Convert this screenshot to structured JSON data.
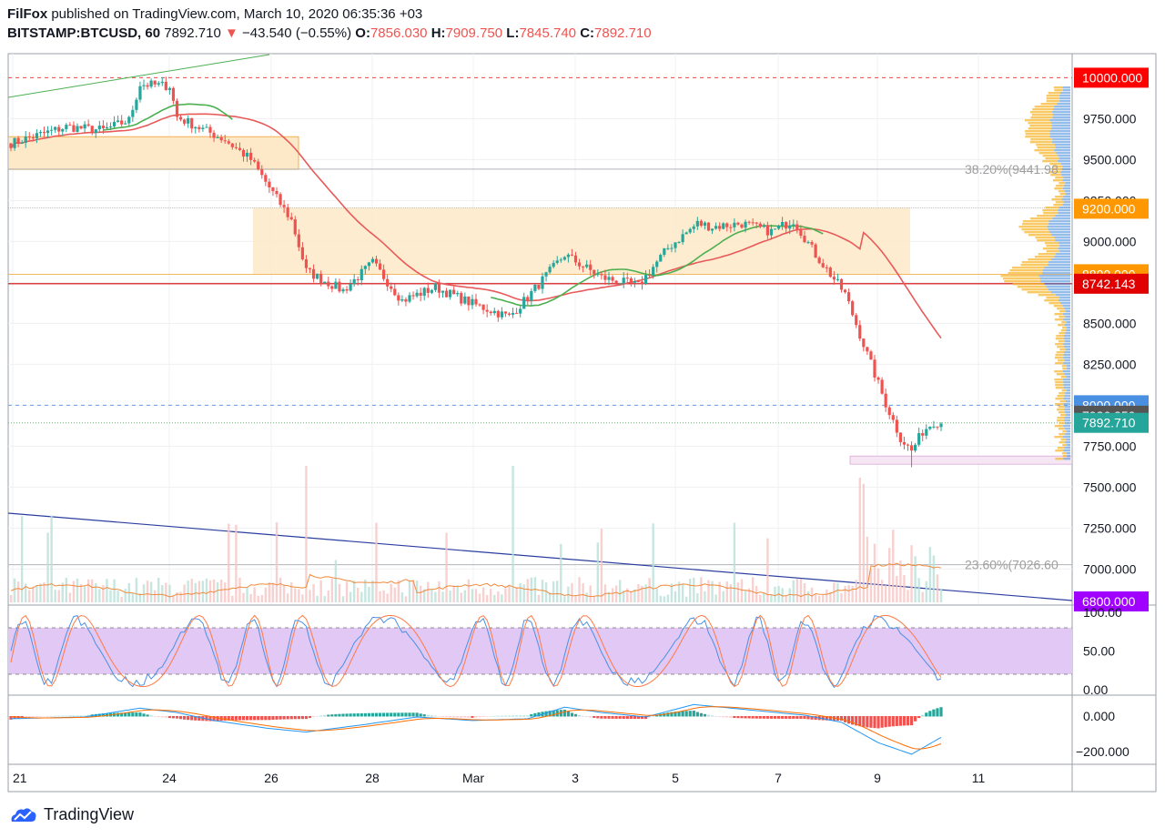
{
  "header": {
    "author": "FilFox",
    "published_text": "published on TradingView.com, March 10, 2020 06:35:36 +03",
    "symbol": "BITSTAMP:BTCUSD, 60",
    "last": "7892.710",
    "change": "−43.540 (−0.55%)",
    "open_label": "O:",
    "open": "7856.030",
    "high_label": "H:",
    "high": "7909.750",
    "low_label": "L:",
    "low": "7845.740",
    "close_label": "C:",
    "close": "7892.710"
  },
  "footer": {
    "brand": "TradingView"
  },
  "colors": {
    "up": "#26a69a",
    "down": "#ef5350",
    "ma_red": "#e85a5a",
    "ma_green": "#4caf50",
    "zone": "#fde9c7",
    "zone_line": "#f0a030",
    "rsi_band": "#e1c8f5",
    "blue_line": "#2a3ea0"
  },
  "chart_data": [
    {
      "type": "candlestick",
      "series_name": "BITSTAMP:BTCUSD, 60",
      "x_ticks": [
        "21",
        "24",
        "26",
        "28",
        "Mar",
        "3",
        "5",
        "7",
        "9",
        "11"
      ],
      "y_ticks": [
        "9750.000",
        "9500.000",
        "9250.000",
        "9000.000",
        "8500.000",
        "8250.000",
        "7750.000",
        "7500.000",
        "7250.000",
        "7000.000"
      ],
      "ylim": [
        6800,
        10150
      ],
      "price_labels": [
        {
          "text": "10000.000",
          "value": 10000,
          "color": "#ff0000"
        },
        {
          "text": "9200.000",
          "value": 9200,
          "color": "#ff9800"
        },
        {
          "text": "8800.000",
          "value": 8800,
          "color": "#ff9800"
        },
        {
          "text": "8742.143",
          "value": 8742.143,
          "color": "#e00000"
        },
        {
          "text": "8000.000",
          "value": 8000,
          "color": "#4a90e2"
        },
        {
          "text": "7936.250",
          "value": 7936.25,
          "color": "#555555"
        },
        {
          "text": "7892.710",
          "value": 7892.71,
          "color": "#26a69a"
        },
        {
          "text": "6800.000",
          "value": 6800,
          "color": "#a000ff"
        }
      ],
      "fib_labels": [
        {
          "text": "38.20%(9441.98",
          "value": 9441.98
        },
        {
          "text": "23.60%(7026.60",
          "value": 7026.6
        }
      ],
      "key_points": [
        [
          0,
          9600
        ],
        [
          15,
          9700
        ],
        [
          25,
          9680
        ],
        [
          32,
          9740
        ],
        [
          35,
          9960
        ],
        [
          43,
          9950
        ],
        [
          45,
          9760
        ],
        [
          58,
          9620
        ],
        [
          65,
          9500
        ],
        [
          70,
          9330
        ],
        [
          76,
          9130
        ],
        [
          80,
          8820
        ],
        [
          90,
          8700
        ],
        [
          98,
          8870
        ],
        [
          106,
          8640
        ],
        [
          115,
          8720
        ],
        [
          125,
          8620
        ],
        [
          135,
          8540
        ],
        [
          140,
          8660
        ],
        [
          150,
          8920
        ],
        [
          160,
          8780
        ],
        [
          170,
          8730
        ],
        [
          178,
          8960
        ],
        [
          186,
          9110
        ],
        [
          190,
          9090
        ],
        [
          198,
          9110
        ],
        [
          206,
          9060
        ],
        [
          212,
          9130
        ],
        [
          218,
          8920
        ],
        [
          226,
          8680
        ],
        [
          232,
          8310
        ],
        [
          237,
          8010
        ],
        [
          241,
          7800
        ],
        [
          244,
          7720
        ],
        [
          247,
          7840
        ],
        [
          250,
          7900
        ],
        [
          252,
          7893
        ]
      ]
    },
    {
      "type": "line",
      "series_name": "Stochastic RSI",
      "y_ticks": [
        "100.00",
        "50.00",
        "0.00"
      ],
      "ylim": [
        0,
        100
      ],
      "band": [
        20,
        80
      ]
    },
    {
      "type": "histogram",
      "series_name": "MACD",
      "y_ticks": [
        "0.000",
        "−200.000"
      ],
      "ylim": [
        -230,
        90
      ],
      "key_points": [
        [
          0,
          -15
        ],
        [
          20,
          -5
        ],
        [
          35,
          45
        ],
        [
          45,
          20
        ],
        [
          55,
          -25
        ],
        [
          70,
          -70
        ],
        [
          80,
          -90
        ],
        [
          95,
          -50
        ],
        [
          110,
          -5
        ],
        [
          125,
          -25
        ],
        [
          140,
          -15
        ],
        [
          150,
          50
        ],
        [
          160,
          20
        ],
        [
          172,
          -5
        ],
        [
          185,
          65
        ],
        [
          200,
          35
        ],
        [
          215,
          5
        ],
        [
          225,
          -35
        ],
        [
          235,
          -150
        ],
        [
          244,
          -215
        ],
        [
          252,
          -120
        ]
      ]
    }
  ]
}
